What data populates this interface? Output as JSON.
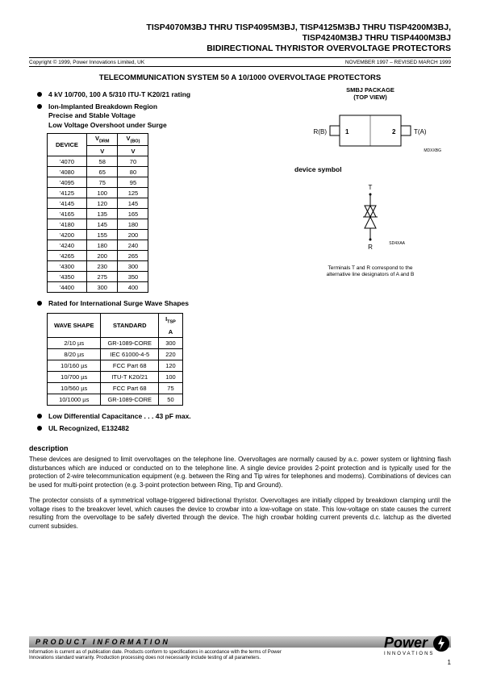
{
  "title": {
    "l1": "TISP4070M3BJ THRU TISP4095M3BJ, TISP4125M3BJ THRU  TISP4200M3BJ,",
    "l2": "TISP4240M3BJ THRU TISP4400M3BJ",
    "l3": "BIDIRECTIONAL THYRISTOR OVERVOLTAGE PROTECTORS"
  },
  "copyright": "Copyright © 1999, Power Innovations Limited, UK",
  "revision": "NOVEMBER 1997 – REVISED MARCH 1999",
  "section_header": "TELECOMMUNICATION SYSTEM 50 A 10/1000 OVERVOLTAGE PROTECTORS",
  "bullets": {
    "b1": "4 kV 10/700, 100 A 5/310 ITU-T K20/21 rating",
    "b2_l1": "Ion-Implanted Breakdown Region",
    "b2_l2": "Precise and Stable Voltage",
    "b2_l3": "Low Voltage Overshoot under Surge",
    "b3": "Rated for International Surge Wave Shapes",
    "b4": "Low Differential Capacitance . . . 43 pF max.",
    "b5": "UL Recognized, E132482"
  },
  "device_table": {
    "headers": {
      "c1": "DEVICE",
      "c2_top": "V",
      "c2_sub": "DRM",
      "c2_unit": "V",
      "c3_top": "V",
      "c3_sub": "(BO)",
      "c3_unit": "V"
    },
    "rows": [
      [
        "'4070",
        "58",
        "70"
      ],
      [
        "'4080",
        "65",
        "80"
      ],
      [
        "'4095",
        "75",
        "95"
      ],
      [
        "'4125",
        "100",
        "125"
      ],
      [
        "'4145",
        "120",
        "145"
      ],
      [
        "'4165",
        "135",
        "165"
      ],
      [
        "'4180",
        "145",
        "180"
      ],
      [
        "'4200",
        "155",
        "200"
      ],
      [
        "'4240",
        "180",
        "240"
      ],
      [
        "'4265",
        "200",
        "265"
      ],
      [
        "'4300",
        "230",
        "300"
      ],
      [
        "'4350",
        "275",
        "350"
      ],
      [
        "'4400",
        "300",
        "400"
      ]
    ]
  },
  "wave_table": {
    "headers": {
      "c1": "WAVE SHAPE",
      "c2": "STANDARD",
      "c3_top": "I",
      "c3_sub": "TSP",
      "c3_unit": "A"
    },
    "rows": [
      [
        "2/10 µs",
        "GR-1089-CORE",
        "300"
      ],
      [
        "8/20 µs",
        "IEC 61000-4-5",
        "220"
      ],
      [
        "10/160 µs",
        "FCC Part 68",
        "120"
      ],
      [
        "10/700 µs",
        "ITU-T K20/21",
        "100"
      ],
      [
        "10/560 µs",
        "FCC Part 68",
        "75"
      ],
      [
        "10/1000 µs",
        "GR-1089-CORE",
        "50"
      ]
    ]
  },
  "package": {
    "label_l1": "SMBJ PACKAGE",
    "label_l2": "(TOP VIEW)",
    "pin_left": "R(B)",
    "pin_left_num": "1",
    "pin_right": "T(A)",
    "pin_right_num": "2",
    "code": "MDXXBG"
  },
  "symbol": {
    "label": "device symbol",
    "t": "T",
    "r": "R",
    "code": "SD4XAA",
    "note_l1": "Terminals T and R correspond to the",
    "note_l2": "alternative line designators of A and B"
  },
  "description": {
    "heading": "description",
    "p1": "These devices are designed to limit overvoltages on the telephone line. Overvoltages are normally caused by a.c. power system or lightning flash disturbances which are induced or conducted on to the telephone line. A single device provides 2-point protection and is typically used for the protection of 2-wire telecommunication equipment (e.g. between the Ring and Tip wires for telephones and modems). Combinations of devices can be used for multi-point protection (e.g. 3-point protection between Ring, Tip and Ground).",
    "p2": "The protector consists of a symmetrical voltage-triggered bidirectional thyristor. Overvoltages are initially clipped by breakdown clamping until the voltage rises to the breakover level, which causes the device to crowbar into a low-voltage on state. This low-voltage on state causes the current resulting from the overvoltage to be safely diverted through the device. The high crowbar holding current prevents d.c. latchup as the diverted current subsides."
  },
  "footer": {
    "bar": "PRODUCT   INFORMATION",
    "text": "Information is current as of publication date. Products conform to specifications in accordance with the terms of Power Innovations standard warranty. Production processing does not necessarily include testing of all parameters.",
    "logo_a": "Power",
    "logo_b": "INNOVATIONS",
    "page": "1"
  }
}
